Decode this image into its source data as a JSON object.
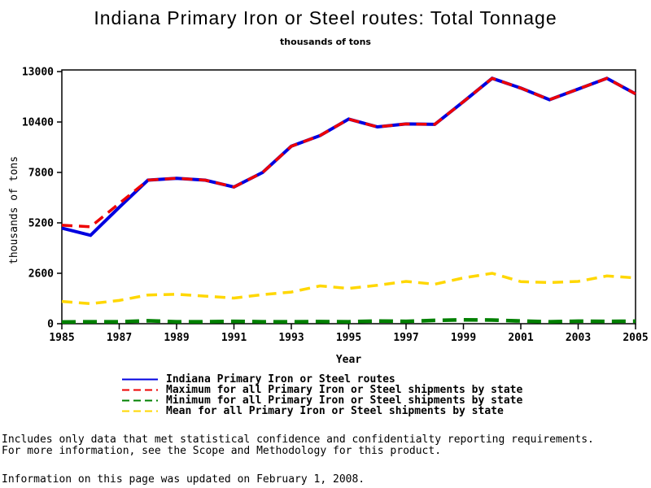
{
  "chart_data": {
    "type": "line",
    "title": "Indiana Primary Iron or Steel routes: Total Tonnage",
    "subtitle": "thousands of tons",
    "xlabel": "Year",
    "ylabel": "thousands of tons",
    "x": [
      1985,
      1986,
      1987,
      1988,
      1989,
      1990,
      1991,
      1992,
      1993,
      1994,
      1995,
      1996,
      1997,
      1998,
      1999,
      2000,
      2001,
      2002,
      2003,
      2004,
      2005
    ],
    "xlim": [
      1985,
      2005
    ],
    "ylim": [
      0,
      13000
    ],
    "x_ticks": [
      1985,
      1987,
      1989,
      1991,
      1993,
      1995,
      1997,
      1999,
      2001,
      2003,
      2005
    ],
    "y_ticks": [
      0,
      2600,
      5200,
      7800,
      10400,
      13000
    ],
    "grid": false,
    "legend_position": "bottom-left",
    "series": [
      {
        "name": "Indiana Primary Iron or Steel routes",
        "color": "#0000e0",
        "style": "solid",
        "values": [
          4930,
          4560,
          6000,
          7400,
          7500,
          7400,
          7050,
          7800,
          9150,
          9700,
          10550,
          10150,
          10300,
          10280,
          11450,
          12650,
          12150,
          11550,
          12100,
          12650,
          11850
        ]
      },
      {
        "name": "Maximum for all Primary Iron or Steel shipments by state",
        "color": "#ee0000",
        "style": "dashed",
        "values": [
          5080,
          5000,
          6200,
          7400,
          7500,
          7400,
          7050,
          7800,
          9150,
          9700,
          10550,
          10150,
          10300,
          10280,
          11450,
          12650,
          12150,
          11550,
          12100,
          12650,
          11850
        ]
      },
      {
        "name": "Minimum for all Primary Iron or Steel shipments by state",
        "color": "#008000",
        "style": "dashed",
        "values": [
          90,
          100,
          100,
          150,
          100,
          100,
          120,
          100,
          100,
          110,
          100,
          140,
          120,
          170,
          200,
          190,
          140,
          100,
          130,
          120,
          130
        ]
      },
      {
        "name": "Mean for all Primary Iron or Steel shipments by state",
        "color": "#ffd700",
        "style": "dashed",
        "values": [
          1150,
          1030,
          1200,
          1480,
          1520,
          1420,
          1320,
          1500,
          1630,
          1950,
          1820,
          1980,
          2180,
          2040,
          2360,
          2600,
          2170,
          2120,
          2180,
          2460,
          2360
        ]
      }
    ]
  },
  "notes": {
    "line1": "Includes only data that met statistical confidence and confidentialty reporting requirements.",
    "line2": "For more information, see the Scope and Methodology for this product.",
    "line3": "Information on this page was updated on February 1, 2008."
  }
}
